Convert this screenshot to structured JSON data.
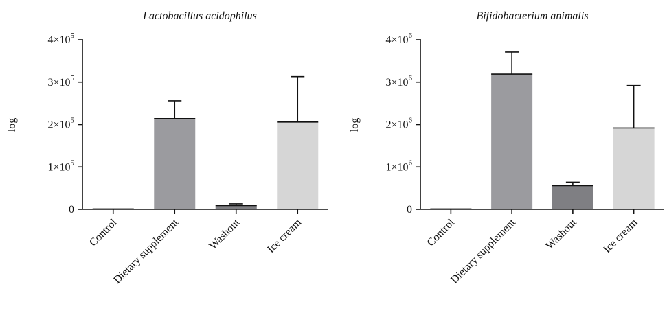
{
  "chart_data": [
    {
      "type": "bar",
      "title": "Lactobacillus acidophilus",
      "ylabel": "log",
      "xlabel": "",
      "categories": [
        "Control",
        "Dietary supplement",
        "Washout",
        "Ice cream"
      ],
      "values": [
        1000,
        214000,
        9000,
        206000
      ],
      "error_upper": [
        1000,
        256000,
        13000,
        313000
      ],
      "bar_colors": [
        "#9b9b9f",
        "#9b9b9f",
        "#7f7f83",
        "#d6d6d6"
      ],
      "ylim": [
        0,
        400000
      ],
      "yticks": [
        {
          "value": 0,
          "mantissa": "0",
          "exponent": ""
        },
        {
          "value": 100000,
          "mantissa": "1×10",
          "exponent": "5"
        },
        {
          "value": 200000,
          "mantissa": "2×10",
          "exponent": "5"
        },
        {
          "value": 300000,
          "mantissa": "3×10",
          "exponent": "5"
        },
        {
          "value": 400000,
          "mantissa": "4×10",
          "exponent": "5"
        }
      ],
      "grid": false,
      "legend": "none"
    },
    {
      "type": "bar",
      "title": "Bifidobacterium animalis",
      "ylabel": "log",
      "xlabel": "",
      "categories": [
        "Control",
        "Dietary supplement",
        "Washout",
        "Ice cream"
      ],
      "values": [
        10000,
        3190000,
        560000,
        1920000
      ],
      "error_upper": [
        10000,
        3710000,
        640000,
        2920000
      ],
      "bar_colors": [
        "#9b9b9f",
        "#9b9b9f",
        "#7f7f83",
        "#d6d6d6"
      ],
      "ylim": [
        0,
        4000000
      ],
      "yticks": [
        {
          "value": 0,
          "mantissa": "0",
          "exponent": ""
        },
        {
          "value": 1000000,
          "mantissa": "1×10",
          "exponent": "6"
        },
        {
          "value": 2000000,
          "mantissa": "2×10",
          "exponent": "6"
        },
        {
          "value": 3000000,
          "mantissa": "3×10",
          "exponent": "6"
        },
        {
          "value": 4000000,
          "mantissa": "4×10",
          "exponent": "6"
        }
      ],
      "grid": false,
      "legend": "none"
    }
  ]
}
